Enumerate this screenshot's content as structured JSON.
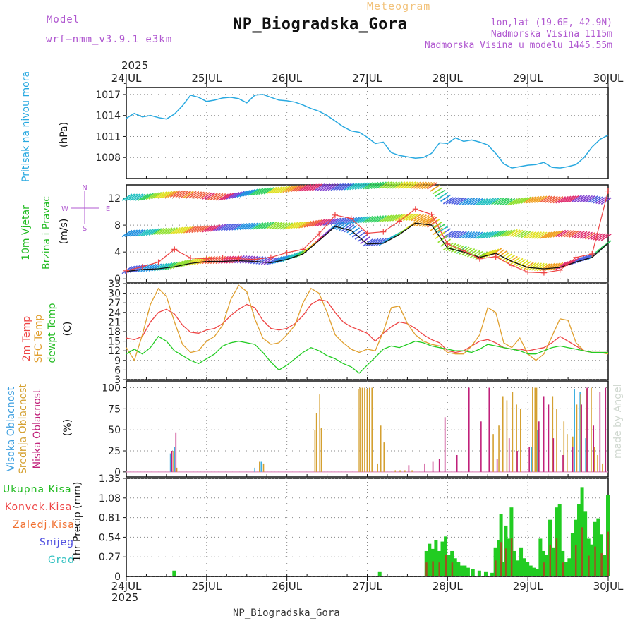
{
  "header": {
    "model_label": "Model",
    "model_name": "wrf—nmm_v3.9.1 e3km",
    "meteogram_label": "Meteogram",
    "station": "NP_Biogradska_Gora",
    "lonlat": "lon,lat (19.6E, 42.9N)",
    "altitude": "Nadmorska Visina 1115m",
    "model_altitude": "Nadmorska Visina u modelu 1445.55m",
    "year_top": "2025",
    "year_bottom": "2025",
    "footer_station": "NP_Biogradska_Gora",
    "credit": "made by Angel"
  },
  "colors": {
    "pressure": "#29a9e0",
    "temp": "#ee4444",
    "sfc": "#e0a030",
    "dew": "#22cc22",
    "wind_mean": "#111111",
    "gust": "#ee4444",
    "high_cloud": "#3fb0e0",
    "mid_cloud": "#d4a030",
    "low_cloud": "#c0207a",
    "total_precip": "#22cc22",
    "conv_precip": "#ee4444",
    "grid": "#888888"
  },
  "chart_data": [
    {
      "type": "line",
      "id": "pressure",
      "ylabel": "Pritisak na nivou mora",
      "unit": "(hPa)",
      "ylim": [
        1005,
        1018
      ],
      "yticks": [
        1008,
        1011,
        1014,
        1017
      ],
      "x_days": [
        "24JUL",
        "25JUL",
        "26JUL",
        "27JUL",
        "28JUL",
        "29JUL",
        "30JUL"
      ],
      "x": [
        0,
        0.1,
        0.2,
        0.3,
        0.4,
        0.5,
        0.6,
        0.7,
        0.8,
        0.9,
        1.0,
        1.1,
        1.2,
        1.3,
        1.4,
        1.5,
        1.6,
        1.7,
        1.8,
        1.9,
        2.0,
        2.1,
        2.2,
        2.3,
        2.4,
        2.5,
        2.6,
        2.7,
        2.8,
        2.9,
        3.0,
        3.1,
        3.2,
        3.3,
        3.4,
        3.5,
        3.6,
        3.7,
        3.8,
        3.9,
        4.0,
        4.1,
        4.2,
        4.3,
        4.4,
        4.5,
        4.6,
        4.7,
        4.8,
        4.9,
        5.0,
        5.1,
        5.2,
        5.3,
        5.4,
        5.5,
        5.6,
        5.7,
        5.8,
        5.9,
        6.0
      ],
      "values": [
        1013.6,
        1014.3,
        1013.8,
        1014.0,
        1013.7,
        1013.5,
        1014.2,
        1015.4,
        1016.9,
        1016.6,
        1016.0,
        1016.2,
        1016.5,
        1016.6,
        1016.4,
        1015.8,
        1016.9,
        1017.0,
        1016.6,
        1016.2,
        1016.1,
        1015.9,
        1015.5,
        1015.0,
        1014.6,
        1014.0,
        1013.2,
        1012.4,
        1011.8,
        1011.6,
        1010.9,
        1010.0,
        1010.2,
        1008.7,
        1008.3,
        1008.1,
        1007.9,
        1008.0,
        1008.6,
        1010.1,
        1010.0,
        1010.8,
        1010.3,
        1010.5,
        1010.2,
        1009.8,
        1008.6,
        1007.1,
        1006.5,
        1006.7,
        1006.9,
        1007.0,
        1007.3,
        1006.6,
        1006.5,
        1006.7,
        1007.0,
        1008.0,
        1009.5,
        1010.6,
        1011.2
      ]
    },
    {
      "type": "line",
      "id": "wind",
      "ylabel": "10m Vjetar",
      "ylabel2": "Brzina i Pravac",
      "unit": "(m/s)",
      "ylim": [
        -0.5,
        14
      ],
      "yticks": [
        0,
        4,
        8,
        12
      ],
      "compass": [
        "N",
        "S",
        "W",
        "E"
      ],
      "x": [
        0,
        0.2,
        0.4,
        0.6,
        0.8,
        1.0,
        1.2,
        1.4,
        1.6,
        1.8,
        2.0,
        2.2,
        2.4,
        2.6,
        2.8,
        3.0,
        3.2,
        3.4,
        3.6,
        3.8,
        4.0,
        4.2,
        4.4,
        4.6,
        4.8,
        5.0,
        5.2,
        5.4,
        5.6,
        5.8,
        6.0
      ],
      "series": [
        {
          "name": "mean wind",
          "values": [
            1.1,
            1.4,
            1.5,
            1.8,
            2.3,
            2.6,
            2.6,
            2.7,
            2.6,
            2.4,
            2.9,
            3.7,
            5.7,
            7.8,
            7.2,
            5.2,
            5.3,
            6.6,
            8.3,
            8.0,
            4.6,
            4.0,
            3.2,
            3.8,
            2.6,
            1.7,
            1.5,
            1.7,
            2.5,
            3.2,
            5.3
          ]
        },
        {
          "name": "gust",
          "values": [
            1.2,
            1.8,
            2.5,
            4.4,
            3.1,
            3.0,
            3.1,
            3.0,
            2.9,
            3.2,
            3.9,
            4.4,
            6.7,
            9.5,
            9.0,
            6.8,
            7.0,
            8.6,
            10.4,
            9.6,
            5.2,
            4.2,
            3.0,
            3.3,
            2.0,
            1.0,
            0.9,
            1.3,
            3.2,
            3.7,
            13.1
          ]
        }
      ],
      "barb_levels": [
        {
          "name": "upper",
          "values": [
            12.0,
            12.0,
            12.3,
            12.5,
            12.4,
            12.2,
            12.0,
            12.4,
            12.8,
            13.0,
            13.2,
            13.4,
            13.5,
            13.5,
            13.6,
            13.7,
            13.8,
            13.8,
            13.8,
            13.7,
            11.5,
            11.4,
            11.3,
            11.4,
            11.3,
            11.6,
            11.7,
            11.6,
            11.8,
            11.7,
            11.4
          ]
        },
        {
          "name": "middle",
          "values": [
            6.6,
            6.7,
            6.9,
            7.0,
            7.2,
            7.3,
            7.5,
            7.6,
            7.7,
            7.8,
            7.7,
            7.9,
            8.2,
            8.4,
            8.5,
            8.7,
            8.8,
            9.0,
            9.0,
            8.6,
            6.5,
            6.4,
            6.3,
            6.5,
            6.7,
            6.4,
            6.3,
            6.6,
            6.5,
            6.2,
            6.0
          ]
        }
      ]
    },
    {
      "type": "line",
      "id": "temperature",
      "ylabel": "2m Temp",
      "ylabel2": "SFC Temp",
      "ylabel3": "dewpt Temp",
      "unit": "(C)",
      "ylim": [
        3,
        33
      ],
      "yticks": [
        3,
        6,
        9,
        12,
        15,
        18,
        21,
        24,
        27,
        30,
        33
      ],
      "x": [
        0,
        0.1,
        0.2,
        0.3,
        0.4,
        0.5,
        0.6,
        0.7,
        0.8,
        0.9,
        1.0,
        1.1,
        1.2,
        1.3,
        1.4,
        1.5,
        1.6,
        1.7,
        1.8,
        1.9,
        2.0,
        2.1,
        2.2,
        2.3,
        2.4,
        2.5,
        2.6,
        2.7,
        2.8,
        2.9,
        3.0,
        3.1,
        3.2,
        3.3,
        3.4,
        3.5,
        3.6,
        3.7,
        3.8,
        3.9,
        4.0,
        4.1,
        4.2,
        4.3,
        4.4,
        4.5,
        4.6,
        4.7,
        4.8,
        4.9,
        5.0,
        5.1,
        5.2,
        5.3,
        5.4,
        5.5,
        5.6,
        5.7,
        5.8,
        5.9,
        6.0
      ],
      "series": [
        {
          "name": "2m Temp",
          "values": [
            16.0,
            15.5,
            16.5,
            21.0,
            24.0,
            25.0,
            23.5,
            20.0,
            17.8,
            17.5,
            18.5,
            19.0,
            20.5,
            23.0,
            25.0,
            26.5,
            25.5,
            21.5,
            19.0,
            18.5,
            19.0,
            20.5,
            23.0,
            26.5,
            28.0,
            27.5,
            24.0,
            21.0,
            19.5,
            18.5,
            17.5,
            15.0,
            17.5,
            19.5,
            21.0,
            20.5,
            19.0,
            17.0,
            15.5,
            14.5,
            12.0,
            11.5,
            12.0,
            13.5,
            15.0,
            15.5,
            14.5,
            13.0,
            12.5,
            12.5,
            12.0,
            12.5,
            13.0,
            14.5,
            16.5,
            15.0,
            13.5,
            12.0,
            11.5,
            11.5,
            11.5
          ]
        },
        {
          "name": "SFC Temp",
          "values": [
            13.0,
            9.0,
            17.0,
            26.5,
            31.5,
            29.0,
            21.0,
            14.0,
            11.5,
            12.0,
            15.0,
            16.5,
            20.0,
            28.0,
            32.5,
            30.5,
            22.0,
            16.0,
            14.0,
            14.5,
            17.0,
            20.0,
            27.0,
            31.5,
            30.0,
            24.0,
            17.0,
            14.5,
            12.5,
            11.5,
            12.5,
            12.0,
            18.0,
            25.5,
            26.0,
            20.5,
            17.0,
            15.0,
            14.0,
            13.5,
            11.5,
            11.0,
            11.0,
            13.5,
            17.0,
            25.5,
            24.0,
            14.5,
            13.0,
            16.0,
            11.0,
            9.0,
            11.0,
            16.5,
            22.0,
            21.5,
            14.5,
            12.0,
            11.5,
            11.5,
            11.0
          ]
        },
        {
          "name": "dewpt Temp",
          "values": [
            11.0,
            12.5,
            11.0,
            13.0,
            16.5,
            15.0,
            12.0,
            10.5,
            9.0,
            8.0,
            9.5,
            11.0,
            13.5,
            14.5,
            15.0,
            14.5,
            14.0,
            11.5,
            8.5,
            6.0,
            7.5,
            9.5,
            11.5,
            13.0,
            12.0,
            10.5,
            9.5,
            8.0,
            7.0,
            5.0,
            7.5,
            10.0,
            12.5,
            13.5,
            13.0,
            14.0,
            15.0,
            14.5,
            13.5,
            13.0,
            12.5,
            12.0,
            12.0,
            11.5,
            12.5,
            14.0,
            13.5,
            13.0,
            12.5,
            12.0,
            11.0,
            11.0,
            12.0,
            13.0,
            13.5,
            13.0,
            12.5,
            12.0,
            11.5,
            11.5,
            11.5
          ]
        }
      ]
    },
    {
      "type": "bar",
      "id": "cloud",
      "ylabel": "Visoka Oblacnost",
      "ylabel2": "Srednja Oblacnost",
      "ylabel3": "Niska Oblacnost",
      "unit": "(%)",
      "ylim": [
        0,
        100
      ],
      "yticks": [
        0,
        25,
        50,
        75,
        100
      ],
      "series": [
        {
          "name": "high",
          "x": [
            0.55,
            0.6,
            1.6,
            1.68,
            5.05,
            5.12,
            5.58,
            5.65,
            5.72
          ],
          "values": [
            22,
            30,
            5,
            12,
            30,
            50,
            98,
            95,
            40
          ]
        },
        {
          "name": "mid",
          "x": [
            0.58,
            0.62,
            1.65,
            1.7,
            2.34,
            2.36,
            2.4,
            2.42,
            2.88,
            2.9,
            2.93,
            2.96,
            2.99,
            3.02,
            3.05,
            3.12,
            3.16,
            3.2,
            3.34,
            3.4,
            3.46,
            3.55,
            4.56,
            4.63,
            4.68,
            4.73,
            4.8,
            4.85,
            4.9,
            5.05,
            5.08,
            5.1,
            5.3,
            5.35,
            5.44,
            5.48,
            5.55,
            5.6,
            5.65,
            5.72,
            5.78,
            5.82,
            5.86,
            5.92
          ],
          "values": [
            25,
            5,
            12,
            10,
            50,
            70,
            92,
            52,
            98,
            100,
            100,
            100,
            98,
            100,
            100,
            10,
            55,
            35,
            2,
            2,
            2,
            2,
            45,
            55,
            90,
            85,
            95,
            80,
            75,
            100,
            100,
            100,
            90,
            75,
            60,
            45,
            42,
            80,
            92,
            98,
            100,
            30,
            20,
            10
          ]
        },
        {
          "name": "low",
          "x": [
            0.55,
            0.6,
            3.5,
            3.7,
            3.8,
            3.88,
            3.95,
            4.1,
            4.25,
            4.4,
            4.5,
            4.6,
            4.75,
            4.85,
            5.0,
            5.12,
            5.18,
            5.24,
            5.3,
            5.42,
            5.54,
            5.65,
            5.72,
            5.8,
            5.88,
            5.95
          ],
          "values": [
            25,
            47,
            8,
            10,
            12,
            15,
            65,
            20,
            100,
            60,
            100,
            15,
            40,
            25,
            30,
            60,
            90,
            80,
            40,
            20,
            30,
            80,
            100,
            55,
            95,
            100
          ]
        }
      ]
    },
    {
      "type": "bar",
      "id": "precip",
      "ylabel": "1hr Precip",
      "unit": "(mm)",
      "ylim": [
        0,
        1.35
      ],
      "yticks": [
        0.27,
        0.54,
        0.81,
        1.08,
        1.35
      ],
      "legend": [
        "Ukupna Kisa",
        "Konvek.Kisa",
        "Zaledj.Kisa",
        "Snijeg",
        "Grad"
      ],
      "x": [
        0.6,
        3.16,
        3.74,
        3.78,
        3.82,
        3.86,
        3.9,
        3.94,
        3.98,
        4.02,
        4.06,
        4.1,
        4.14,
        4.18,
        4.22,
        4.26,
        4.32,
        4.4,
        4.48,
        4.56,
        4.6,
        4.64,
        4.67,
        4.7,
        4.73,
        4.76,
        4.8,
        4.84,
        4.88,
        4.92,
        4.96,
        5.0,
        5.04,
        5.08,
        5.12,
        5.16,
        5.2,
        5.24,
        5.28,
        5.32,
        5.36,
        5.4,
        5.44,
        5.48,
        5.52,
        5.56,
        5.6,
        5.64,
        5.68,
        5.72,
        5.76,
        5.8,
        5.84,
        5.88,
        5.92,
        5.96,
        6.0
      ],
      "total": [
        0.08,
        0.06,
        0.35,
        0.45,
        0.38,
        0.5,
        0.35,
        0.48,
        0.55,
        0.3,
        0.35,
        0.25,
        0.2,
        0.15,
        0.15,
        0.12,
        0.1,
        0.08,
        0.06,
        0.05,
        0.4,
        0.5,
        0.86,
        0.2,
        0.7,
        0.52,
        0.95,
        0.35,
        0.22,
        0.4,
        0.25,
        0.2,
        0.15,
        0.12,
        0.1,
        0.52,
        0.35,
        0.3,
        0.78,
        0.4,
        0.95,
        1.0,
        0.35,
        0.2,
        0.25,
        0.6,
        0.78,
        1.0,
        1.23,
        0.9,
        0.52,
        0.44,
        0.75,
        0.8,
        0.58,
        0.3,
        1.12
      ]
    }
  ]
}
